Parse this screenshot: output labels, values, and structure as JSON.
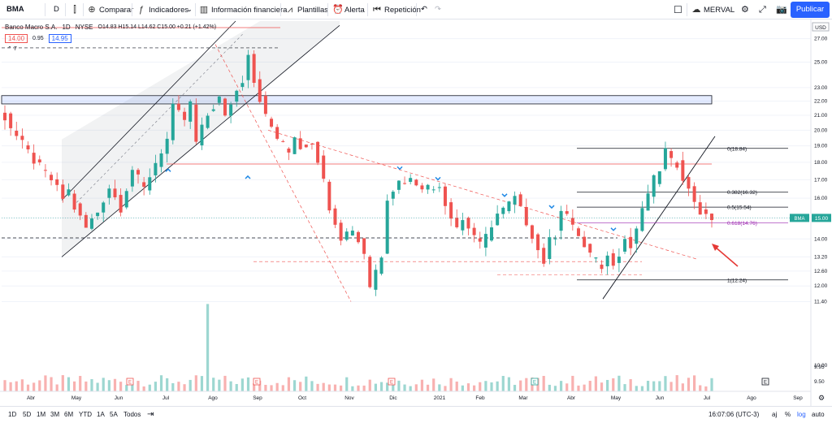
{
  "toolbar": {
    "symbol": "BMA",
    "interval": "D",
    "compare": "Comparar",
    "indicators": "Indicadores",
    "financials": "Información financiera",
    "templates": "Plantillas",
    "alert": "Alerta",
    "replay": "Repetición",
    "exchange": "MERVAL",
    "publish": "Publicar"
  },
  "legend": {
    "name": "Banco Macro S.A.",
    "interval": "1D",
    "exchange": "NYSE",
    "ohlc": "O14.83 H15.14 L14.62 C15.00 +0.21 (+1.42%)",
    "bid": "14.00",
    "spread": "0.95",
    "ask": "14.95",
    "collapse": "7"
  },
  "axis": {
    "currency": "USD",
    "price_tag_symbol": "BMA",
    "price_tag_value": "15.00",
    "y_ticks": [
      "27.00",
      "25.00",
      "23.00",
      "22.00",
      "21.00",
      "20.00",
      "19.00",
      "18.00",
      "17.00",
      "16.00",
      "15.00",
      "14.00",
      "13.20",
      "12.60",
      "12.00",
      "11.40",
      "10.00",
      "9.95",
      "9.50"
    ],
    "x_ticks": [
      "Abr",
      "May",
      "Jun",
      "Jul",
      "Ago",
      "Sep",
      "Oct",
      "Nov",
      "Dic",
      "2021",
      "Feb",
      "Mar",
      "Abr",
      "May",
      "Jun",
      "Jul",
      "Ago",
      "Sep"
    ]
  },
  "fib_labels": [
    "0(18.84)",
    "0.382(16.32)",
    "0.5(15.54)",
    "0.618(14.76)",
    "1(12.24)"
  ],
  "bottom": {
    "ranges": [
      "1D",
      "5D",
      "1M",
      "3M",
      "6M",
      "YTD",
      "1A",
      "5A",
      "Todos"
    ],
    "time": "16:07:06 (UTC-3)",
    "adj": "aj",
    "pct": "%",
    "log": "log",
    "auto": "auto"
  },
  "colors": {
    "up": "#26a69a",
    "down": "#ef5350",
    "accent": "#2962ff",
    "fib618": "#9c27b0"
  },
  "chart_data": {
    "type": "candlestick",
    "symbol": "BMA",
    "x_range": [
      "2020-03-25",
      "2021-09-05"
    ],
    "y_scale": "log",
    "ylim": [
      9.2,
      28.6
    ],
    "last_close": 15.0,
    "price_path": [
      [
        0,
        21.5
      ],
      [
        3,
        19.6
      ],
      [
        6,
        18.1
      ],
      [
        9,
        17.0
      ],
      [
        11,
        16.0
      ],
      [
        12,
        16.4
      ],
      [
        13,
        15.5
      ],
      [
        14,
        15.0
      ],
      [
        15,
        14.5
      ],
      [
        17,
        15.3
      ],
      [
        19,
        16.6
      ],
      [
        21,
        15.5
      ],
      [
        23,
        17.6
      ],
      [
        25,
        16.5
      ],
      [
        27,
        18.0
      ],
      [
        29,
        19.4
      ],
      [
        30,
        21.5
      ],
      [
        32,
        20.7
      ],
      [
        33,
        21.8
      ],
      [
        34,
        19.2
      ],
      [
        36,
        21.0
      ],
      [
        38,
        22.2
      ],
      [
        39,
        20.8
      ],
      [
        40,
        21.9
      ],
      [
        42,
        23.6
      ],
      [
        43,
        25.9
      ],
      [
        44,
        23.5
      ],
      [
        45,
        22.2
      ],
      [
        46,
        20.9
      ],
      [
        48,
        19.5
      ],
      [
        50,
        18.6
      ],
      [
        51,
        19.7
      ],
      [
        52,
        18.9
      ],
      [
        54,
        19.3
      ],
      [
        55,
        18.2
      ],
      [
        57,
        15.6
      ],
      [
        59,
        14.1
      ],
      [
        61,
        14.5
      ],
      [
        62,
        13.9
      ],
      [
        63,
        13.4
      ],
      [
        64,
        12.0
      ],
      [
        66,
        13.3
      ],
      [
        67,
        16.1
      ],
      [
        69,
        16.9
      ],
      [
        71,
        17.0
      ],
      [
        73,
        16.7
      ],
      [
        75,
        16.5
      ],
      [
        76,
        16.8
      ],
      [
        77,
        15.7
      ],
      [
        79,
        14.6
      ],
      [
        80,
        14.9
      ],
      [
        82,
        14.2
      ],
      [
        83,
        13.7
      ],
      [
        84,
        14.1
      ],
      [
        85,
        14.7
      ],
      [
        86,
        15.2
      ],
      [
        87,
        15.4
      ],
      [
        89,
        16.0
      ],
      [
        90,
        15.4
      ],
      [
        91,
        14.8
      ],
      [
        92,
        14.2
      ],
      [
        93,
        13.5
      ],
      [
        94,
        13.0
      ],
      [
        95,
        13.9
      ],
      [
        96,
        14.2
      ],
      [
        97,
        15.5
      ],
      [
        98,
        15.2
      ],
      [
        99,
        14.5
      ],
      [
        100,
        14.2
      ],
      [
        101,
        13.6
      ],
      [
        102,
        13.3
      ],
      [
        103,
        13.0
      ],
      [
        104,
        12.8
      ],
      [
        105,
        13.2
      ],
      [
        106,
        13.0
      ],
      [
        107,
        13.4
      ],
      [
        108,
        14.0
      ],
      [
        109,
        13.6
      ],
      [
        110,
        14.5
      ],
      [
        111,
        15.3
      ],
      [
        112,
        16.3
      ],
      [
        113,
        17.0
      ],
      [
        114,
        17.6
      ],
      [
        115,
        18.7
      ],
      [
        116,
        18.0
      ],
      [
        117,
        17.9
      ],
      [
        118,
        17.2
      ],
      [
        119,
        16.4
      ],
      [
        120,
        15.9
      ],
      [
        121,
        15.3
      ],
      [
        122,
        15.0
      ]
    ],
    "candle_count": 123,
    "fib_levels": [
      {
        "ratio": 0,
        "price": 18.84
      },
      {
        "ratio": 0.382,
        "price": 16.32
      },
      {
        "ratio": 0.5,
        "price": 15.54
      },
      {
        "ratio": 0.618,
        "price": 14.76
      },
      {
        "ratio": 1,
        "price": 12.24
      }
    ],
    "resistance_line": 17.9,
    "dashed_support": 14.05,
    "zone": [
      21.8,
      22.4
    ],
    "volume_spike_index": 35
  }
}
